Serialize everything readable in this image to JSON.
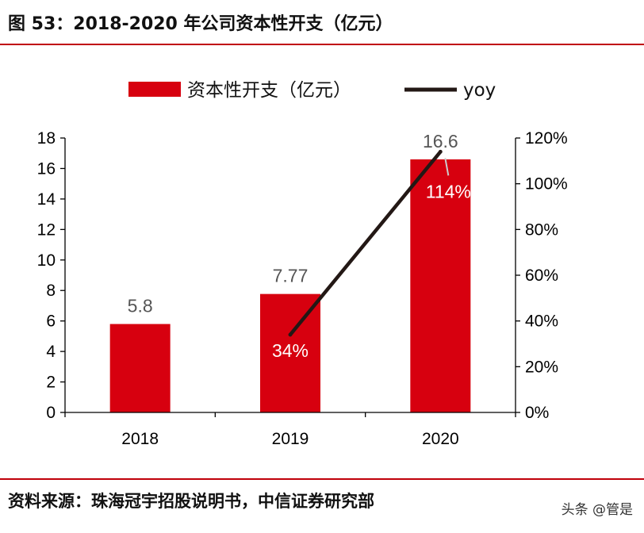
{
  "header": {
    "title": "图 53：2018-2020 年公司资本性开支（亿元）"
  },
  "footer": {
    "source": "资料来源：珠海冠宇招股说明书，中信证券研究部",
    "watermark": "头条 @管是"
  },
  "colors": {
    "bar": "#d7000f",
    "line": "#231815",
    "rule": "#c0000a"
  },
  "chart_data": {
    "type": "bar",
    "categories": [
      "2018",
      "2019",
      "2020"
    ],
    "series": [
      {
        "name": "资本性开支（亿元）",
        "type": "bar",
        "axis": "left",
        "values": [
          5.8,
          7.77,
          16.6
        ],
        "labels": [
          "5.8",
          "7.77",
          "16.6"
        ]
      },
      {
        "name": "yoy",
        "type": "line",
        "axis": "right",
        "values": [
          null,
          34,
          114
        ],
        "labels": [
          "",
          "34%",
          "114%"
        ]
      }
    ],
    "y_left": {
      "min": 0,
      "max": 18,
      "step": 2,
      "ticks": [
        "0",
        "2",
        "4",
        "6",
        "8",
        "10",
        "12",
        "14",
        "16",
        "18"
      ]
    },
    "y_right": {
      "min": 0,
      "max": 120,
      "step": 20,
      "ticks": [
        "0%",
        "20%",
        "40%",
        "60%",
        "80%",
        "100%",
        "120%"
      ]
    },
    "legend_position": "top",
    "grid": false
  }
}
